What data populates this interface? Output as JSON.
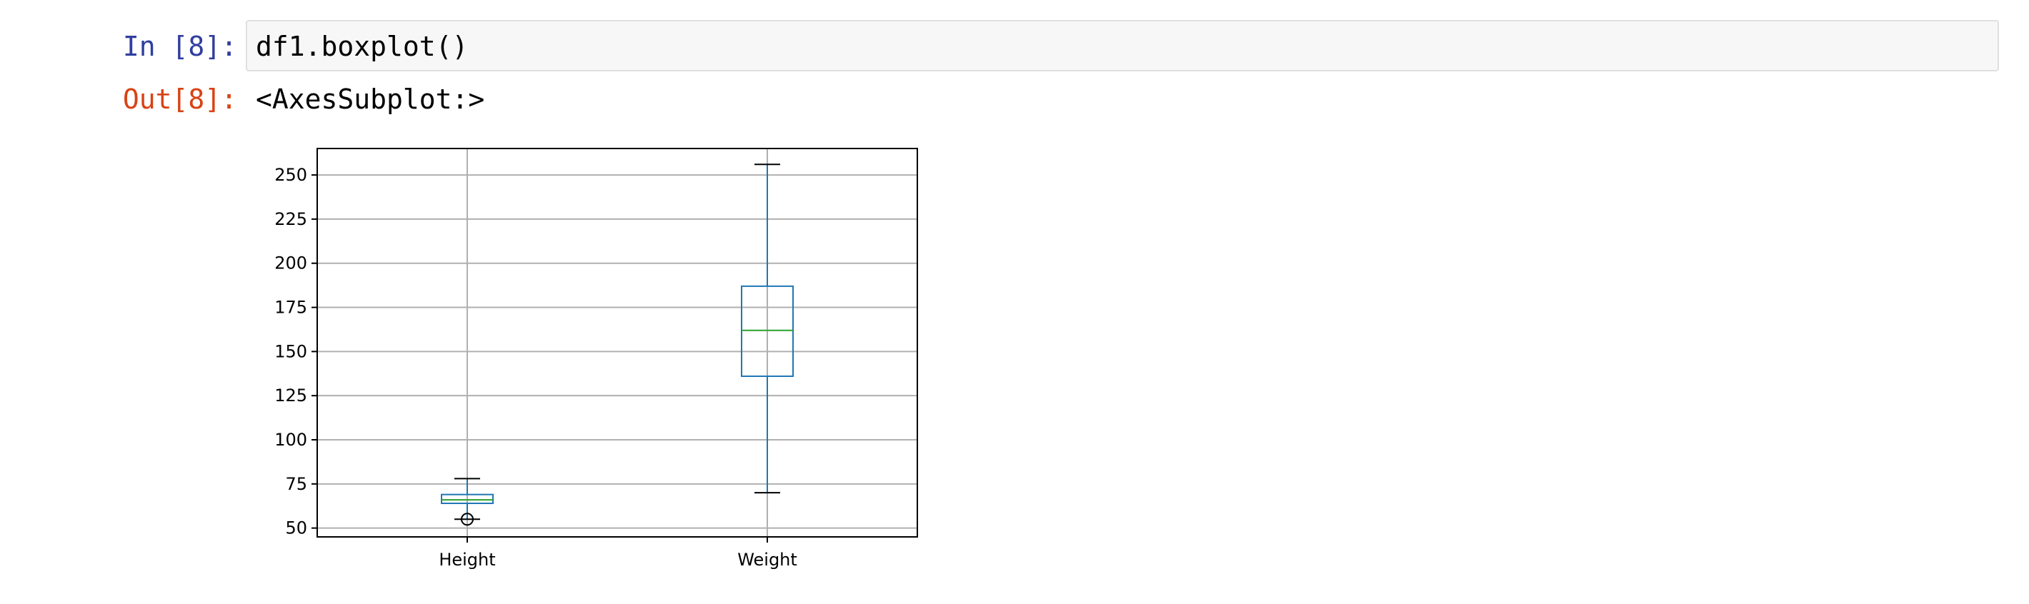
{
  "cell": {
    "in_prompt": "In [8]:",
    "code": "df1.boxplot()",
    "out_prompt": "Out[8]:",
    "output_text": "<AxesSubplot:>"
  },
  "chart_data": {
    "type": "box",
    "categories": [
      "Height",
      "Weight"
    ],
    "ylim": [
      45,
      265
    ],
    "yticks": [
      50,
      75,
      100,
      125,
      150,
      175,
      200,
      225,
      250
    ],
    "grid": true,
    "boxes": [
      {
        "name": "Height",
        "whisker_low": 55,
        "q1": 64,
        "median": 66,
        "q3": 69,
        "whisker_high": 78,
        "outliers": [
          55
        ]
      },
      {
        "name": "Weight",
        "whisker_low": 70,
        "q1": 136,
        "median": 162,
        "q3": 187,
        "whisker_high": 256,
        "outliers": []
      }
    ],
    "colors": {
      "box": "#1f77b4",
      "median": "#2ca02c",
      "cap": "#000000",
      "grid": "#b0b0b0",
      "axes": "#000000"
    }
  }
}
